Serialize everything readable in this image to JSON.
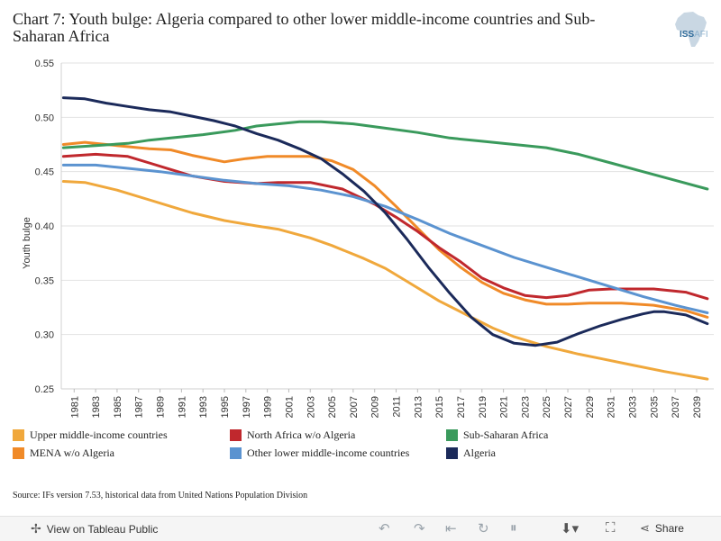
{
  "title": "Chart 7: Youth bulge: Algeria compared to other lower middle-income countries and Sub-Saharan Africa",
  "logo": {
    "text": "ISS",
    "suffix": "AFI"
  },
  "source": "Source: IFs version 7.53, historical data from United Nations Population Division",
  "toolbar": {
    "view_label": "View on Tableau Public",
    "share_label": "Share"
  },
  "chart_data": {
    "type": "line",
    "title": "Chart 7: Youth bulge: Algeria compared to other lower middle-income countries and Sub-Saharan Africa",
    "ylabel": "Youth bulge",
    "xlabel": "",
    "ylim": [
      0.25,
      0.55
    ],
    "yticks": [
      "0.25",
      "0.30",
      "0.35",
      "0.40",
      "0.45",
      "0.50",
      "0.55"
    ],
    "xticks": [
      "1981",
      "1983",
      "1985",
      "1987",
      "1989",
      "1991",
      "1993",
      "1995",
      "1997",
      "1999",
      "2001",
      "2003",
      "2005",
      "2007",
      "2009",
      "2011",
      "2013",
      "2015",
      "2017",
      "2019",
      "2021",
      "2023",
      "2025",
      "2027",
      "2029",
      "2031",
      "2033",
      "2035",
      "2037",
      "2039"
    ],
    "grid": "horizontal",
    "legend_position": "bottom",
    "series": [
      {
        "name": "Upper middle-income countries",
        "color": "#f0a83c",
        "x": [
          1980,
          1982,
          1985,
          1988,
          1990,
          1992,
          1995,
          1998,
          2000,
          2003,
          2005,
          2008,
          2010,
          2012,
          2015,
          2018,
          2020,
          2022,
          2025,
          2028,
          2030,
          2033,
          2036,
          2040
        ],
        "y": [
          0.441,
          0.44,
          0.433,
          0.424,
          0.418,
          0.412,
          0.405,
          0.4,
          0.397,
          0.389,
          0.382,
          0.37,
          0.361,
          0.349,
          0.331,
          0.316,
          0.306,
          0.298,
          0.289,
          0.282,
          0.278,
          0.272,
          0.266,
          0.259
        ]
      },
      {
        "name": "MENA w/o Algeria",
        "color": "#f08a28",
        "x": [
          1980,
          1982,
          1985,
          1988,
          1990,
          1992,
          1995,
          1997,
          1999,
          2003,
          2005,
          2007,
          2009,
          2011,
          2013,
          2015,
          2017,
          2019,
          2021,
          2023,
          2025,
          2027,
          2029,
          2032,
          2035,
          2038,
          2040
        ],
        "y": [
          0.475,
          0.477,
          0.474,
          0.471,
          0.47,
          0.465,
          0.459,
          0.462,
          0.464,
          0.464,
          0.46,
          0.452,
          0.437,
          0.418,
          0.398,
          0.378,
          0.362,
          0.348,
          0.338,
          0.332,
          0.328,
          0.328,
          0.329,
          0.329,
          0.327,
          0.322,
          0.316
        ]
      },
      {
        "name": "North Africa w/o Algeria",
        "color": "#c0282d",
        "x": [
          1980,
          1983,
          1986,
          1988,
          1990,
          1992,
          1995,
          1998,
          2000,
          2003,
          2006,
          2009,
          2011,
          2013,
          2015,
          2017,
          2019,
          2021,
          2023,
          2025,
          2027,
          2029,
          2031,
          2033,
          2035,
          2038,
          2040
        ],
        "y": [
          0.464,
          0.466,
          0.464,
          0.458,
          0.452,
          0.446,
          0.441,
          0.439,
          0.44,
          0.44,
          0.434,
          0.42,
          0.408,
          0.395,
          0.38,
          0.367,
          0.352,
          0.343,
          0.336,
          0.334,
          0.336,
          0.341,
          0.342,
          0.342,
          0.342,
          0.339,
          0.333
        ]
      },
      {
        "name": "Other lower middle-income countries",
        "color": "#5b93d0",
        "x": [
          1980,
          1983,
          1986,
          1989,
          1992,
          1995,
          1998,
          2001,
          2004,
          2007,
          2010,
          2013,
          2016,
          2019,
          2022,
          2025,
          2028,
          2031,
          2034,
          2037,
          2040
        ],
        "y": [
          0.456,
          0.456,
          0.453,
          0.45,
          0.446,
          0.442,
          0.439,
          0.437,
          0.433,
          0.427,
          0.418,
          0.406,
          0.393,
          0.382,
          0.371,
          0.362,
          0.353,
          0.344,
          0.335,
          0.327,
          0.32
        ]
      },
      {
        "name": "Sub-Saharan Africa",
        "color": "#3a9a5c",
        "x": [
          1980,
          1983,
          1986,
          1988,
          1990,
          1993,
          1996,
          1998,
          2000,
          2002,
          2004,
          2007,
          2010,
          2013,
          2016,
          2019,
          2022,
          2025,
          2028,
          2031,
          2034,
          2037,
          2040
        ],
        "y": [
          0.472,
          0.474,
          0.476,
          0.479,
          0.481,
          0.484,
          0.488,
          0.492,
          0.494,
          0.496,
          0.496,
          0.494,
          0.49,
          0.486,
          0.481,
          0.478,
          0.475,
          0.472,
          0.466,
          0.458,
          0.45,
          0.442,
          0.434
        ]
      },
      {
        "name": "Algeria",
        "color": "#1b2a5a",
        "x": [
          1980,
          1982,
          1984,
          1986,
          1988,
          1990,
          1992,
          1994,
          1996,
          1998,
          2000,
          2002,
          2004,
          2006,
          2008,
          2010,
          2012,
          2014,
          2016,
          2018,
          2020,
          2022,
          2024,
          2026,
          2028,
          2030,
          2032,
          2034,
          2035,
          2036,
          2038,
          2040
        ],
        "y": [
          0.518,
          0.517,
          0.513,
          0.51,
          0.507,
          0.505,
          0.501,
          0.497,
          0.492,
          0.485,
          0.479,
          0.471,
          0.462,
          0.448,
          0.432,
          0.412,
          0.388,
          0.362,
          0.338,
          0.316,
          0.3,
          0.292,
          0.29,
          0.293,
          0.301,
          0.308,
          0.314,
          0.319,
          0.321,
          0.321,
          0.318,
          0.31
        ]
      }
    ]
  }
}
